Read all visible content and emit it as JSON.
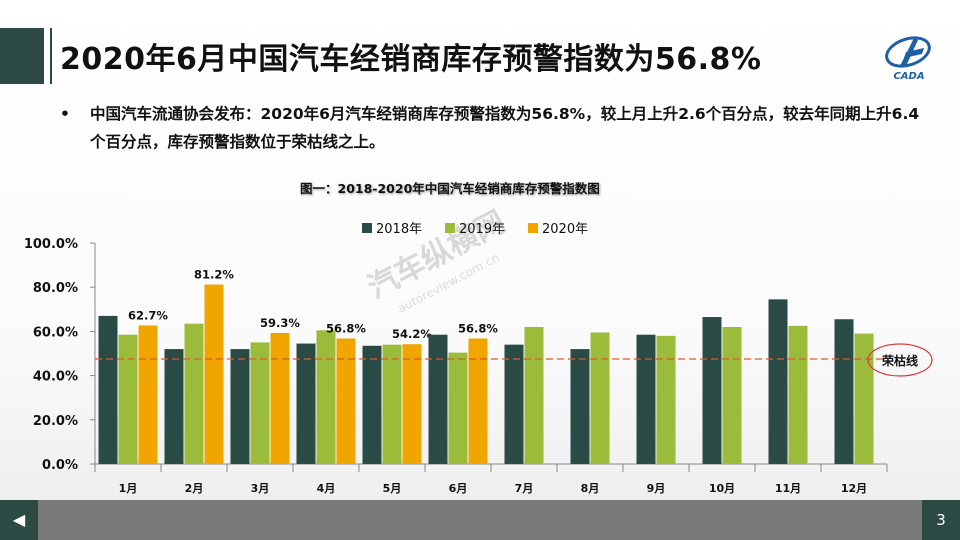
{
  "header": {
    "title": "2020年6月中国汽车经销商库存预警指数为56.8%",
    "logo_text": "CADA"
  },
  "bullet": {
    "symbol": "•",
    "text": "中国汽车流通协会发布：2020年6月汽车经销商库存预警指数为56.8%，较上月上升2.6个百分点，较去年同期上升6.4个百分点，库存预警指数位于荣枯线之上。"
  },
  "watermark": {
    "text": "汽车纵横网",
    "url": "autoreview.com.cn"
  },
  "footer": {
    "prev_icon": "◀",
    "page_number": "3"
  },
  "chart_data": {
    "type": "bar",
    "title": "图一：2018-2020年中国汽车经销商库存预警指数图",
    "categories": [
      "1月",
      "2月",
      "3月",
      "4月",
      "5月",
      "6月",
      "7月",
      "8月",
      "9月",
      "10月",
      "11月",
      "12月"
    ],
    "series": [
      {
        "name": "2018年",
        "color": "#2a4a45",
        "values": [
          67.0,
          52.0,
          52.0,
          54.5,
          53.5,
          58.5,
          54.0,
          52.0,
          58.5,
          66.5,
          74.5,
          65.5
        ]
      },
      {
        "name": "2019年",
        "color": "#9bbb3b",
        "values": [
          58.5,
          63.5,
          55.0,
          60.5,
          54.0,
          50.4,
          62.0,
          59.5,
          58.0,
          62.0,
          62.5,
          59.0
        ]
      },
      {
        "name": "2020年",
        "color": "#f0a500",
        "values": [
          62.7,
          81.2,
          59.3,
          56.8,
          54.2,
          56.8,
          null,
          null,
          null,
          null,
          null,
          null
        ]
      }
    ],
    "data_labels": [
      "62.7%",
      "81.2%",
      "59.3%",
      "56.8%",
      "54.2%",
      "56.8%"
    ],
    "y_ticks": [
      "100.0%",
      "80.0%",
      "60.0%",
      "40.0%",
      "20.0%",
      "0.0%"
    ],
    "ylim": [
      0,
      100
    ],
    "threshold": {
      "value": 47.5,
      "label": "荣枯线",
      "color": "#e05a2a"
    },
    "legend_position": "top",
    "grid": false
  }
}
